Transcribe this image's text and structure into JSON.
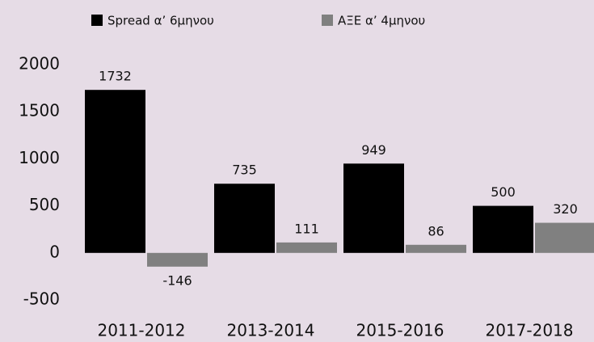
{
  "chart_data": {
    "type": "bar",
    "categories": [
      "2011-2012",
      "2013-2014",
      "2015-2016",
      "2017-2018"
    ],
    "series": [
      {
        "name": "Spread α’ 6μηνου",
        "color": "#000000",
        "values": [
          1732,
          735,
          949,
          500
        ]
      },
      {
        "name": "ΑΞΕ α’ 4μηνου",
        "color": "#808080",
        "values": [
          -146,
          111,
          86,
          320
        ]
      }
    ],
    "ylim": [
      -500,
      2000
    ],
    "yticks": [
      -500,
      0,
      500,
      1000,
      1500,
      2000
    ],
    "grid": false
  }
}
